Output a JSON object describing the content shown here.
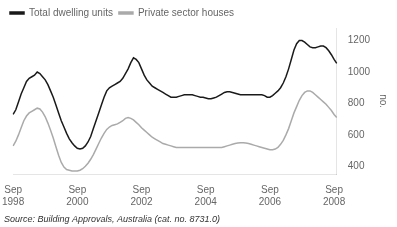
{
  "chart_data": {
    "type": "line",
    "annotations": [
      "Source: Building Approvals, Australia (cat. no. 8731.0)"
    ],
    "ylabel": "no.",
    "categories": [
      "Sep\n1998",
      null,
      null,
      null,
      null,
      null,
      null,
      null,
      null,
      null,
      null,
      null,
      null,
      null,
      null,
      null,
      null,
      null,
      null,
      null,
      null,
      null,
      null,
      null,
      "Sep\n2000",
      null,
      null,
      null,
      null,
      null,
      null,
      null,
      null,
      null,
      null,
      null,
      null,
      null,
      null,
      null,
      null,
      null,
      null,
      null,
      null,
      null,
      null,
      null,
      "Sep\n2002",
      null,
      null,
      null,
      null,
      null,
      null,
      null,
      null,
      null,
      null,
      null,
      null,
      null,
      null,
      null,
      null,
      null,
      null,
      null,
      null,
      null,
      null,
      null,
      "Sep\n2004",
      null,
      null,
      null,
      null,
      null,
      null,
      null,
      null,
      null,
      null,
      null,
      null,
      null,
      null,
      null,
      null,
      null,
      null,
      null,
      null,
      null,
      null,
      null,
      "Sep\n2006",
      null,
      null,
      null,
      null,
      null,
      null,
      null,
      null,
      null,
      null,
      null,
      null,
      null,
      null,
      null,
      null,
      null,
      null,
      null,
      null,
      null,
      null,
      null,
      "Sep\n2008",
      null
    ],
    "series": [
      {
        "name": "Total dwelling units",
        "color": "#1a1a1a",
        "values": [
          730,
          760,
          810,
          860,
          900,
          940,
          960,
          970,
          980,
          1000,
          990,
          970,
          950,
          920,
          880,
          840,
          790,
          740,
          690,
          650,
          610,
          575,
          550,
          530,
          515,
          510,
          515,
          530,
          555,
          590,
          640,
          690,
          740,
          790,
          840,
          880,
          900,
          910,
          920,
          930,
          940,
          960,
          990,
          1020,
          1060,
          1090,
          1080,
          1060,
          1020,
          980,
          950,
          930,
          910,
          900,
          890,
          880,
          870,
          860,
          850,
          840,
          840,
          840,
          845,
          850,
          855,
          855,
          855,
          855,
          850,
          845,
          840,
          840,
          835,
          830,
          830,
          835,
          840,
          850,
          860,
          870,
          875,
          875,
          870,
          865,
          860,
          855,
          855,
          855,
          855,
          855,
          855,
          855,
          855,
          855,
          850,
          840,
          840,
          850,
          865,
          880,
          900,
          930,
          970,
          1020,
          1080,
          1140,
          1180,
          1200,
          1200,
          1190,
          1175,
          1160,
          1155,
          1155,
          1160,
          1165,
          1165,
          1155,
          1135,
          1110,
          1080,
          1055
        ]
      },
      {
        "name": "Private sector houses",
        "color": "#aaaaaa",
        "values": [
          530,
          560,
          600,
          645,
          690,
          720,
          740,
          750,
          760,
          770,
          765,
          745,
          715,
          675,
          630,
          580,
          525,
          470,
          425,
          395,
          380,
          375,
          370,
          370,
          370,
          375,
          385,
          400,
          420,
          445,
          475,
          510,
          545,
          580,
          610,
          635,
          650,
          660,
          665,
          670,
          680,
          690,
          705,
          710,
          705,
          695,
          680,
          665,
          645,
          630,
          615,
          600,
          585,
          575,
          565,
          555,
          545,
          540,
          535,
          530,
          525,
          520,
          520,
          520,
          520,
          520,
          520,
          520,
          520,
          520,
          520,
          520,
          520,
          520,
          520,
          520,
          520,
          520,
          520,
          525,
          530,
          535,
          540,
          545,
          548,
          550,
          550,
          548,
          545,
          540,
          535,
          530,
          525,
          520,
          515,
          510,
          505,
          505,
          510,
          520,
          540,
          565,
          600,
          640,
          690,
          740,
          780,
          820,
          850,
          870,
          880,
          880,
          870,
          855,
          840,
          825,
          810,
          795,
          775,
          755,
          730,
          710
        ]
      }
    ],
    "ylim": [
      350,
      1280
    ],
    "yticks": [
      400,
      600,
      800,
      1000,
      1200
    ],
    "grid": false,
    "legend": "upper left"
  }
}
